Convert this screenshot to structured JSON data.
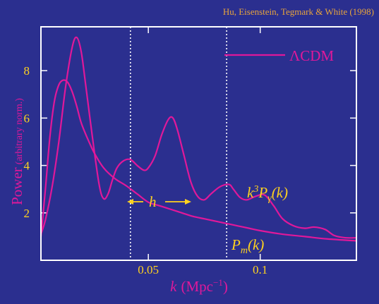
{
  "credit": "Hu, Eisenstein, Tegmark & White (1998)",
  "legend": {
    "label": "ΛCDM"
  },
  "annotations": {
    "h": "h",
    "photon": {
      "pre": "k",
      "sup": "3",
      "mid": "P",
      "sub": "γ",
      "post": "(k)"
    },
    "matter": {
      "pre": "P",
      "sub": "m",
      "post": "(k)"
    }
  },
  "colors": {
    "background": "#2b2f8f",
    "curve": "#e0189a",
    "ticks": "#ffd21f",
    "axes": "#ffffff",
    "credit": "#e8a43c"
  },
  "chart_data": {
    "type": "line",
    "title": "",
    "xlabel": {
      "main": "k",
      "unit": "(Mpc",
      "exp": "−1",
      "close": ")"
    },
    "ylabel": {
      "main": "Power",
      "note": "(arbitrary norm.)"
    },
    "xlim": [
      0.002,
      0.143
    ],
    "ylim": [
      0,
      9.85
    ],
    "x_ticks": [
      0.05,
      0.1
    ],
    "x_tick_labels": [
      "0.05",
      "0.1"
    ],
    "y_ticks": [
      2,
      4,
      6,
      8
    ],
    "y_tick_labels": [
      "2",
      "4",
      "6",
      "8"
    ],
    "reference_lines_x": [
      0.042,
      0.085
    ],
    "grid": false,
    "legend_position": "top-right",
    "series": [
      {
        "name": "k³Pγ(k)",
        "x": [
          0.002,
          0.004,
          0.007,
          0.01,
          0.013,
          0.016,
          0.018,
          0.02,
          0.022,
          0.025,
          0.028,
          0.03,
          0.032,
          0.034,
          0.036,
          0.039,
          0.042,
          0.045,
          0.048,
          0.05,
          0.053,
          0.056,
          0.059,
          0.061,
          0.063,
          0.066,
          0.069,
          0.072,
          0.075,
          0.078,
          0.082,
          0.086,
          0.088,
          0.091,
          0.094,
          0.098,
          0.102,
          0.106,
          0.11,
          0.115,
          0.12,
          0.124,
          0.129,
          0.133,
          0.138,
          0.143
        ],
        "y": [
          1.1,
          1.7,
          3.1,
          5.0,
          7.3,
          9.0,
          9.4,
          8.8,
          7.4,
          5.2,
          3.2,
          2.6,
          2.8,
          3.4,
          3.9,
          4.2,
          4.25,
          4.0,
          3.8,
          3.9,
          4.4,
          5.3,
          5.95,
          6.0,
          5.5,
          4.4,
          3.3,
          2.7,
          2.55,
          2.8,
          3.1,
          3.2,
          3.0,
          2.65,
          2.55,
          2.7,
          2.75,
          2.3,
          1.75,
          1.45,
          1.35,
          1.4,
          1.3,
          1.05,
          0.95,
          0.95
        ]
      },
      {
        "name": "Pₘ(k)",
        "x": [
          0.002,
          0.004,
          0.006,
          0.008,
          0.01,
          0.012,
          0.014,
          0.016,
          0.018,
          0.02,
          0.023,
          0.026,
          0.03,
          0.035,
          0.04,
          0.045,
          0.05,
          0.055,
          0.06,
          0.065,
          0.07,
          0.075,
          0.08,
          0.085,
          0.09,
          0.095,
          0.1,
          0.11,
          0.12,
          0.13,
          0.143
        ],
        "y": [
          1.0,
          3.0,
          5.2,
          6.7,
          7.4,
          7.6,
          7.5,
          7.1,
          6.5,
          5.8,
          5.1,
          4.5,
          3.9,
          3.45,
          3.15,
          2.8,
          2.45,
          2.3,
          2.15,
          2.0,
          1.85,
          1.75,
          1.65,
          1.55,
          1.45,
          1.35,
          1.25,
          1.1,
          1.0,
          0.9,
          0.82
        ]
      }
    ]
  }
}
